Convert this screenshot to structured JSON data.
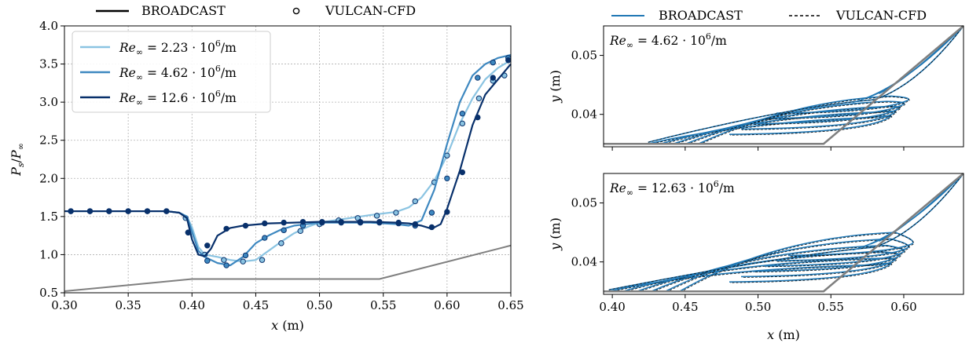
{
  "chart_data": [
    {
      "type": "line",
      "panel": "left",
      "xlabel": "x (m)",
      "ylabel": "P_s/P_∞",
      "xlim": [
        0.3,
        0.65
      ],
      "ylim": [
        0.5,
        4.0
      ],
      "xticks": [
        "0.30",
        "0.35",
        "0.40",
        "0.45",
        "0.50",
        "0.55",
        "0.60",
        "0.65"
      ],
      "yticks": [
        "0.5",
        "1.0",
        "1.5",
        "2.0",
        "2.5",
        "3.0",
        "3.5",
        "4.0"
      ],
      "grid": true,
      "top_legend": [
        "BROADCAST",
        "VULCAN-CFD"
      ],
      "legend_placement": "top-left",
      "series": [
        {
          "name": "Re∞ = 2.23 · 10⁶/m",
          "re_base": "2.23",
          "color": "#8bc4e2",
          "x": [
            0.3,
            0.38,
            0.39,
            0.396,
            0.4,
            0.405,
            0.41,
            0.42,
            0.43,
            0.44,
            0.45,
            0.46,
            0.47,
            0.48,
            0.49,
            0.5,
            0.52,
            0.54,
            0.56,
            0.57,
            0.58,
            0.59,
            0.6,
            0.61,
            0.62,
            0.63,
            0.64,
            0.65
          ],
          "y": [
            1.57,
            1.57,
            1.55,
            1.5,
            1.36,
            1.1,
            1.0,
            0.97,
            0.93,
            0.91,
            0.93,
            1.05,
            1.17,
            1.28,
            1.36,
            1.42,
            1.47,
            1.52,
            1.56,
            1.62,
            1.75,
            1.97,
            2.3,
            2.72,
            3.05,
            3.3,
            3.45,
            3.55
          ],
          "markers_x": [
            0.305,
            0.32,
            0.335,
            0.35,
            0.365,
            0.38,
            0.395,
            0.41,
            0.425,
            0.44,
            0.455,
            0.47,
            0.485,
            0.5,
            0.515,
            0.53,
            0.545,
            0.56,
            0.575,
            0.59,
            0.6,
            0.612,
            0.625,
            0.636,
            0.645
          ],
          "markers_y": [
            1.57,
            1.57,
            1.57,
            1.57,
            1.57,
            1.57,
            1.48,
            1.0,
            0.93,
            0.91,
            0.93,
            1.15,
            1.31,
            1.4,
            1.45,
            1.48,
            1.51,
            1.55,
            1.7,
            1.95,
            2.3,
            2.72,
            3.05,
            3.28,
            3.35
          ]
        },
        {
          "name": "Re∞ = 4.62 · 10⁶/m",
          "re_base": "4.62",
          "color": "#3e88c0",
          "x": [
            0.3,
            0.38,
            0.39,
            0.396,
            0.4,
            0.405,
            0.41,
            0.415,
            0.42,
            0.43,
            0.44,
            0.45,
            0.46,
            0.47,
            0.48,
            0.5,
            0.52,
            0.54,
            0.56,
            0.57,
            0.58,
            0.59,
            0.6,
            0.61,
            0.62,
            0.63,
            0.64,
            0.65
          ],
          "y": [
            1.57,
            1.57,
            1.55,
            1.5,
            1.3,
            1.05,
            0.97,
            0.93,
            0.89,
            0.86,
            0.97,
            1.15,
            1.25,
            1.33,
            1.38,
            1.42,
            1.42,
            1.42,
            1.4,
            1.38,
            1.45,
            1.85,
            2.45,
            3.0,
            3.35,
            3.5,
            3.58,
            3.62
          ],
          "markers_x": [
            0.305,
            0.32,
            0.335,
            0.35,
            0.365,
            0.38,
            0.397,
            0.412,
            0.427,
            0.442,
            0.457,
            0.472,
            0.487,
            0.502,
            0.517,
            0.532,
            0.547,
            0.562,
            0.575,
            0.588,
            0.6,
            0.612,
            0.624,
            0.636,
            0.648
          ],
          "markers_y": [
            1.57,
            1.57,
            1.57,
            1.57,
            1.57,
            1.57,
            1.29,
            0.92,
            0.86,
            0.99,
            1.22,
            1.32,
            1.38,
            1.42,
            1.42,
            1.42,
            1.42,
            1.41,
            1.38,
            1.55,
            2.0,
            2.85,
            3.32,
            3.52,
            3.58
          ]
        },
        {
          "name": "Re∞ = 12.6 · 10⁶/m",
          "re_base": "12.6",
          "color": "#08306b",
          "x": [
            0.3,
            0.38,
            0.39,
            0.396,
            0.4,
            0.405,
            0.41,
            0.415,
            0.42,
            0.43,
            0.44,
            0.46,
            0.48,
            0.5,
            0.52,
            0.54,
            0.56,
            0.57,
            0.58,
            0.588,
            0.595,
            0.6,
            0.61,
            0.62,
            0.63,
            0.64,
            0.65
          ],
          "y": [
            1.57,
            1.57,
            1.55,
            1.48,
            1.2,
            1.0,
            0.98,
            1.08,
            1.25,
            1.35,
            1.38,
            1.41,
            1.42,
            1.43,
            1.43,
            1.43,
            1.42,
            1.41,
            1.38,
            1.34,
            1.4,
            1.6,
            2.1,
            2.7,
            3.1,
            3.3,
            3.5
          ],
          "markers_x": [
            0.305,
            0.32,
            0.335,
            0.35,
            0.365,
            0.38,
            0.397,
            0.412,
            0.427,
            0.442,
            0.457,
            0.472,
            0.487,
            0.502,
            0.517,
            0.532,
            0.547,
            0.562,
            0.575,
            0.588,
            0.6,
            0.612,
            0.624,
            0.636,
            0.648
          ],
          "markers_y": [
            1.57,
            1.57,
            1.57,
            1.57,
            1.57,
            1.57,
            1.29,
            1.12,
            1.34,
            1.38,
            1.41,
            1.42,
            1.43,
            1.43,
            1.43,
            1.43,
            1.43,
            1.42,
            1.4,
            1.36,
            1.56,
            2.08,
            2.8,
            3.32,
            3.55
          ]
        }
      ],
      "geometry_profile": {
        "color": "#7f7f7f",
        "x": [
          0.3,
          0.4,
          0.547,
          0.65
        ],
        "y": [
          0.52,
          0.68,
          0.68,
          1.12
        ]
      }
    },
    {
      "type": "line",
      "panel": "right-top",
      "annotation_base": "4.62",
      "xlim": [
        0.394,
        0.641
      ],
      "ylim": [
        0.0345,
        0.055
      ],
      "xticks": [
        "0.40",
        "0.45",
        "0.50",
        "0.55",
        "0.60"
      ],
      "yticks": [
        "0.04",
        "0.05"
      ],
      "ylabel": "y (m)",
      "top_legend": [
        "BROADCAST",
        "VULCAN-CFD"
      ],
      "legend_placement": "top",
      "color": "#1f77b4",
      "wall": {
        "color": "#7f7f7f",
        "x": [
          0.394,
          0.545,
          0.641
        ],
        "y": [
          0.035,
          0.035,
          0.055
        ]
      }
    },
    {
      "type": "line",
      "panel": "right-bottom",
      "annotation_base": "12.63",
      "xlabel": "x (m)",
      "xlim": [
        0.394,
        0.641
      ],
      "ylim": [
        0.0345,
        0.055
      ],
      "xticks": [
        "0.40",
        "0.45",
        "0.50",
        "0.55",
        "0.60"
      ],
      "yticks": [
        "0.04",
        "0.05"
      ],
      "ylabel": "y (m)",
      "color": "#1f77b4",
      "wall": {
        "color": "#7f7f7f",
        "x": [
          0.394,
          0.545,
          0.641
        ],
        "y": [
          0.035,
          0.035,
          0.055
        ]
      }
    }
  ]
}
